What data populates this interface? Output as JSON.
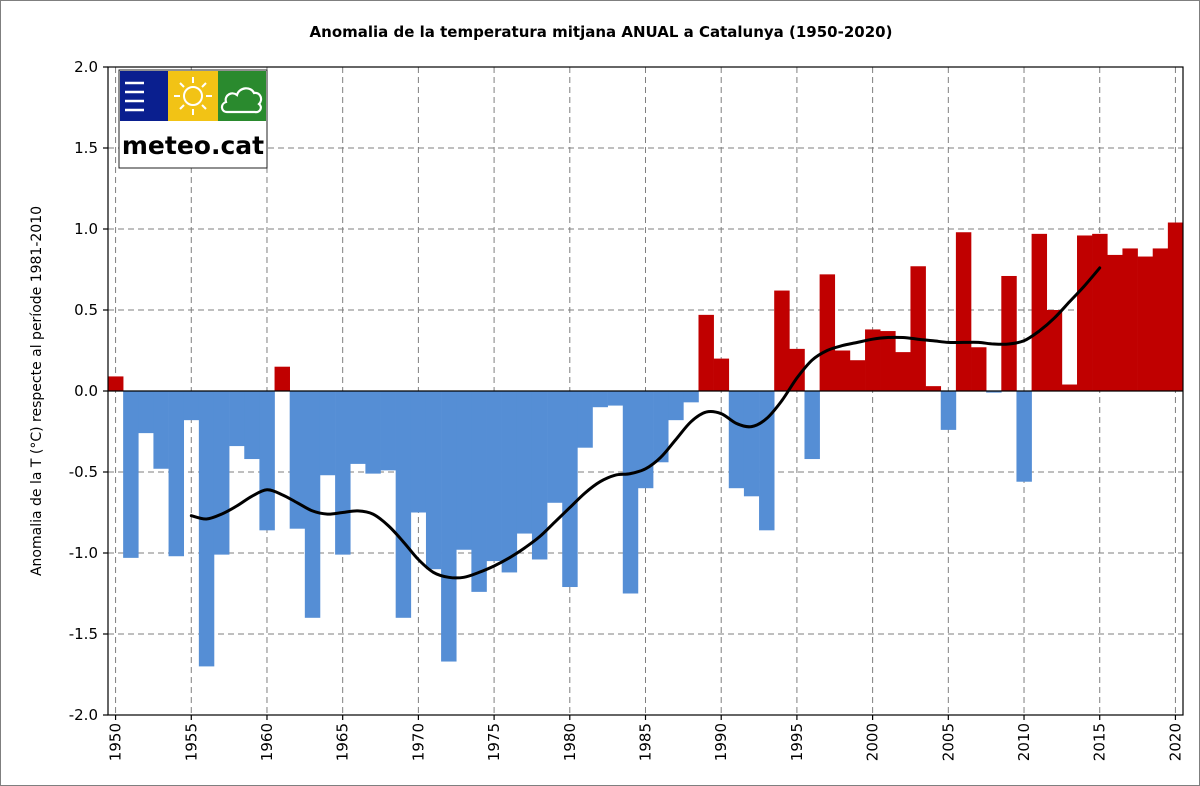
{
  "chart_data": {
    "type": "bar",
    "title": "Anomalia de la temperatura mitjana ANUAL a Catalunya (1950-2020)",
    "xlabel": "",
    "ylabel": "Anomalia de la T (°C) respecte al període 1981-2010",
    "ylim": [
      -2.0,
      2.0
    ],
    "yticks": [
      "2.0",
      "1.5",
      "1.0",
      "0.5",
      "0.0",
      "-0.5",
      "-1.0",
      "-1.5",
      "-2.0"
    ],
    "ytick_values": [
      2.0,
      1.5,
      1.0,
      0.5,
      0.0,
      -0.5,
      -1.0,
      -1.5,
      -2.0
    ],
    "xticks": [
      "1950",
      "1955",
      "1960",
      "1965",
      "1970",
      "1975",
      "1980",
      "1985",
      "1990",
      "1995",
      "2000",
      "2005",
      "2010",
      "2015",
      "2020"
    ],
    "xtick_values": [
      1950,
      1955,
      1960,
      1965,
      1970,
      1975,
      1980,
      1985,
      1990,
      1995,
      2000,
      2005,
      2010,
      2015,
      2020
    ],
    "grid": true,
    "colors": {
      "positive": "#c00000",
      "negative": "#558ed5",
      "trend": "#000000"
    },
    "years": [
      1950,
      1951,
      1952,
      1953,
      1954,
      1955,
      1956,
      1957,
      1958,
      1959,
      1960,
      1961,
      1962,
      1963,
      1964,
      1965,
      1966,
      1967,
      1968,
      1969,
      1970,
      1971,
      1972,
      1973,
      1974,
      1975,
      1976,
      1977,
      1978,
      1979,
      1980,
      1981,
      1982,
      1983,
      1984,
      1985,
      1986,
      1987,
      1988,
      1989,
      1990,
      1991,
      1992,
      1993,
      1994,
      1995,
      1996,
      1997,
      1998,
      1999,
      2000,
      2001,
      2002,
      2003,
      2004,
      2005,
      2006,
      2007,
      2008,
      2009,
      2010,
      2011,
      2012,
      2013,
      2014,
      2015,
      2016,
      2017,
      2018,
      2019,
      2020
    ],
    "values": [
      0.09,
      -1.03,
      -0.26,
      -0.48,
      -1.02,
      -0.18,
      -1.7,
      -1.01,
      -0.34,
      -0.42,
      -0.86,
      0.15,
      -0.85,
      -1.4,
      -0.52,
      -1.01,
      -0.45,
      -0.51,
      -0.49,
      -1.4,
      -0.75,
      -1.1,
      -1.67,
      -0.98,
      -1.24,
      -1.05,
      -1.12,
      -0.88,
      -1.04,
      -0.69,
      -1.21,
      -0.35,
      -0.1,
      -0.09,
      -1.25,
      -0.6,
      -0.44,
      -0.18,
      -0.07,
      0.47,
      0.2,
      -0.6,
      -0.65,
      -0.86,
      0.62,
      0.26,
      -0.42,
      0.72,
      0.25,
      0.19,
      0.38,
      0.37,
      0.24,
      0.77,
      0.03,
      -0.24,
      0.98,
      0.27,
      -0.01,
      0.71,
      -0.56,
      0.97,
      0.5,
      0.04,
      0.96,
      0.97,
      0.84,
      0.88,
      0.83,
      0.88,
      1.04
    ],
    "trend": {
      "name": "smoothed",
      "years": [
        1955.5,
        1956.5,
        1957.5,
        1958.5,
        1959.5,
        1960.5,
        1961.5,
        1962.5,
        1963.5,
        1964.5,
        1965.5,
        1966.5,
        1967.5,
        1968.5,
        1969.5,
        1970.5,
        1971.5,
        1972.5,
        1973.5,
        1974.5,
        1975.5,
        1976.5,
        1977.5,
        1978.5,
        1979.5,
        1980.5,
        1981.5,
        1982.5,
        1983.5,
        1984.5,
        1985.5,
        1986.5,
        1987.5,
        1988.5,
        1989.5,
        1990.5,
        1991.5,
        1992.5,
        1993.5,
        1994.5,
        1995.5,
        1996.5,
        1997.5,
        1998.5,
        1999.5,
        2000.5,
        2001.5,
        2002.5,
        2003.5,
        2004.5,
        2005.5,
        2006.5,
        2007.5,
        2008.5,
        2009.5,
        2010.5,
        2011.5,
        2012.5,
        2013.5,
        2014.5,
        2015.5
      ],
      "values": [
        -0.77,
        -0.79,
        -0.76,
        -0.71,
        -0.65,
        -0.61,
        -0.64,
        -0.69,
        -0.74,
        -0.76,
        -0.75,
        -0.74,
        -0.76,
        -0.83,
        -0.93,
        -1.04,
        -1.12,
        -1.15,
        -1.15,
        -1.12,
        -1.08,
        -1.03,
        -0.97,
        -0.9,
        -0.81,
        -0.72,
        -0.63,
        -0.56,
        -0.52,
        -0.51,
        -0.48,
        -0.41,
        -0.3,
        -0.19,
        -0.13,
        -0.14,
        -0.2,
        -0.22,
        -0.17,
        -0.06,
        0.08,
        0.19,
        0.25,
        0.28,
        0.3,
        0.32,
        0.33,
        0.33,
        0.32,
        0.31,
        0.3,
        0.3,
        0.3,
        0.29,
        0.29,
        0.31,
        0.37,
        0.45,
        0.55,
        0.65,
        0.76
      ]
    }
  },
  "logo": {
    "text": "meteo.cat",
    "colors": {
      "blue": "#0a1f8f",
      "yellow": "#f2c315",
      "green": "#2a8a2e"
    },
    "icons": [
      "menu-lines-icon",
      "sun-icon",
      "cloud-icon"
    ]
  }
}
